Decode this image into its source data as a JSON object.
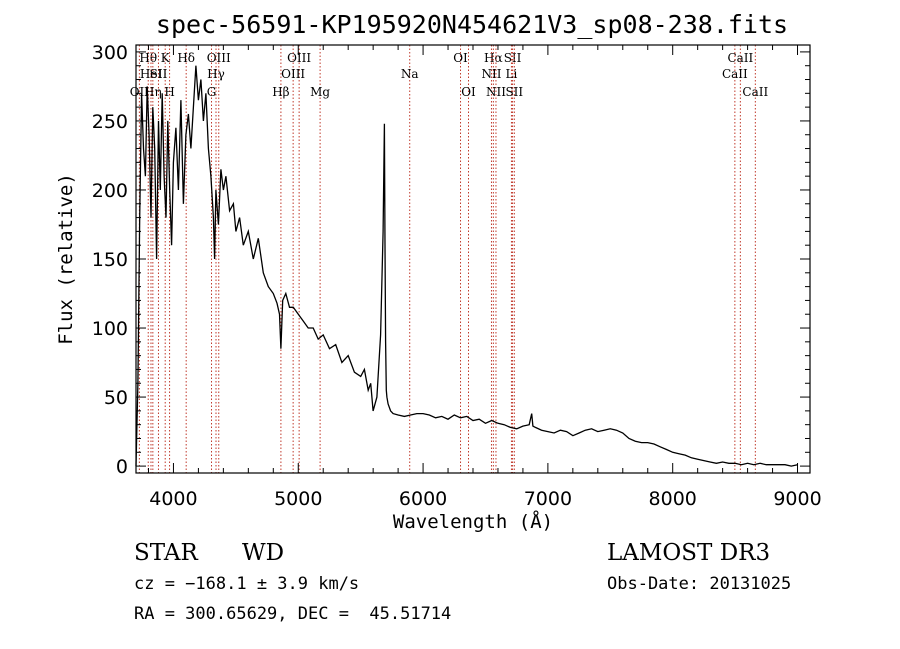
{
  "chart_data": {
    "type": "line",
    "title": "spec-56591-KP195920N454621V3_sp08-238.fits",
    "xlabel": "Wavelength (Å)",
    "ylabel": "Flux (relative)",
    "xlim": [
      3700,
      9100
    ],
    "ylim": [
      -5,
      305
    ],
    "xticks": [
      4000,
      5000,
      6000,
      7000,
      8000,
      9000
    ],
    "yticks": [
      0,
      50,
      100,
      150,
      200,
      250,
      300
    ],
    "grid": false,
    "spectrum": {
      "x": [
        3700,
        3715,
        3730,
        3745,
        3760,
        3775,
        3790,
        3805,
        3820,
        3835,
        3850,
        3865,
        3880,
        3895,
        3910,
        3925,
        3940,
        3955,
        3970,
        3985,
        4000,
        4020,
        4040,
        4060,
        4080,
        4100,
        4120,
        4140,
        4160,
        4180,
        4200,
        4220,
        4240,
        4260,
        4280,
        4300,
        4320,
        4330,
        4340,
        4360,
        4380,
        4400,
        4420,
        4450,
        4480,
        4500,
        4530,
        4560,
        4600,
        4640,
        4680,
        4720,
        4760,
        4800,
        4830,
        4850,
        4861,
        4875,
        4900,
        4930,
        4960,
        5000,
        5040,
        5080,
        5120,
        5160,
        5200,
        5250,
        5300,
        5350,
        5400,
        5450,
        5500,
        5530,
        5560,
        5580,
        5600,
        5630,
        5660,
        5680,
        5690,
        5695,
        5700,
        5705,
        5710,
        5720,
        5740,
        5760,
        5800,
        5850,
        5900,
        5950,
        6000,
        6050,
        6100,
        6150,
        6200,
        6250,
        6300,
        6350,
        6400,
        6450,
        6500,
        6550,
        6600,
        6650,
        6700,
        6750,
        6800,
        6850,
        6870,
        6880,
        6900,
        6950,
        7000,
        7050,
        7100,
        7150,
        7200,
        7250,
        7300,
        7350,
        7400,
        7450,
        7500,
        7550,
        7600,
        7650,
        7700,
        7750,
        7800,
        7850,
        7900,
        7950,
        8000,
        8050,
        8100,
        8150,
        8200,
        8250,
        8300,
        8350,
        8400,
        8450,
        8500,
        8550,
        8600,
        8650,
        8700,
        8750,
        8800,
        8850,
        8900,
        8950,
        9000
      ],
      "y": [
        0,
        60,
        180,
        270,
        230,
        210,
        275,
        240,
        180,
        260,
        230,
        150,
        250,
        200,
        270,
        210,
        180,
        250,
        200,
        160,
        220,
        245,
        200,
        265,
        190,
        240,
        255,
        230,
        260,
        290,
        265,
        280,
        250,
        270,
        230,
        210,
        180,
        150,
        200,
        175,
        215,
        200,
        210,
        185,
        190,
        170,
        180,
        160,
        170,
        150,
        165,
        140,
        130,
        125,
        118,
        110,
        85,
        120,
        125,
        115,
        115,
        110,
        105,
        100,
        100,
        92,
        95,
        85,
        88,
        75,
        80,
        68,
        65,
        70,
        55,
        60,
        40,
        50,
        95,
        170,
        248,
        160,
        90,
        55,
        50,
        45,
        40,
        38,
        37,
        36,
        37,
        38,
        38,
        37,
        35,
        36,
        34,
        37,
        35,
        36,
        33,
        34,
        31,
        33,
        31,
        30,
        28,
        27,
        29,
        30,
        38,
        29,
        28,
        26,
        25,
        24,
        26,
        25,
        22,
        24,
        26,
        27,
        25,
        26,
        27,
        26,
        24,
        20,
        18,
        17,
        17,
        16,
        14,
        12,
        10,
        9,
        8,
        6,
        5,
        4,
        3,
        2,
        3,
        2,
        2,
        1,
        2,
        1,
        2,
        1,
        1,
        1,
        1,
        0,
        1
      ]
    },
    "lines": [
      {
        "label": "Hθ",
        "x": 3798,
        "row": 1
      },
      {
        "label": "OII",
        "x": 3727,
        "row": 3
      },
      {
        "label": "HeI",
        "x": 3820,
        "row": 2
      },
      {
        "label": "Hη",
        "x": 3835,
        "row": 3
      },
      {
        "label": "K",
        "x": 3934,
        "row": 1
      },
      {
        "label": "SII",
        "x": 3880,
        "row": 2
      },
      {
        "label": "H",
        "x": 3969,
        "row": 3
      },
      {
        "label": "Hδ",
        "x": 4102,
        "row": 1
      },
      {
        "label": "OIII",
        "x": 4363,
        "row": 1
      },
      {
        "label": "Hγ",
        "x": 4341,
        "row": 2
      },
      {
        "label": "G",
        "x": 4305,
        "row": 3
      },
      {
        "label": "OIII",
        "x": 5007,
        "row": 1
      },
      {
        "label": "OIII",
        "x": 4959,
        "row": 2
      },
      {
        "label": "Hβ",
        "x": 4861,
        "row": 3
      },
      {
        "label": "Mg",
        "x": 5175,
        "row": 3
      },
      {
        "label": "Na",
        "x": 5893,
        "row": 2
      },
      {
        "label": "OI",
        "x": 6300,
        "row": 1
      },
      {
        "label": "OI",
        "x": 6364,
        "row": 3
      },
      {
        "label": "Hα",
        "x": 6563,
        "row": 1
      },
      {
        "label": "NII",
        "x": 6548,
        "row": 2
      },
      {
        "label": "NII",
        "x": 6584,
        "row": 3
      },
      {
        "label": "SII",
        "x": 6717,
        "row": 1
      },
      {
        "label": "Li",
        "x": 6708,
        "row": 2
      },
      {
        "label": "SII",
        "x": 6731,
        "row": 3
      },
      {
        "label": "CaII",
        "x": 8542,
        "row": 1
      },
      {
        "label": "CaII",
        "x": 8498,
        "row": 2
      },
      {
        "label": "CaII",
        "x": 8662,
        "row": 3
      }
    ]
  },
  "info": {
    "class": "STAR",
    "subclass": "WD",
    "survey": "LAMOST DR3",
    "cz": "cz = −168.1 ± 3.9 km/s",
    "obs_date": "Obs-Date: 20131025",
    "coords": "RA = 300.65629, DEC =  45.51714"
  }
}
